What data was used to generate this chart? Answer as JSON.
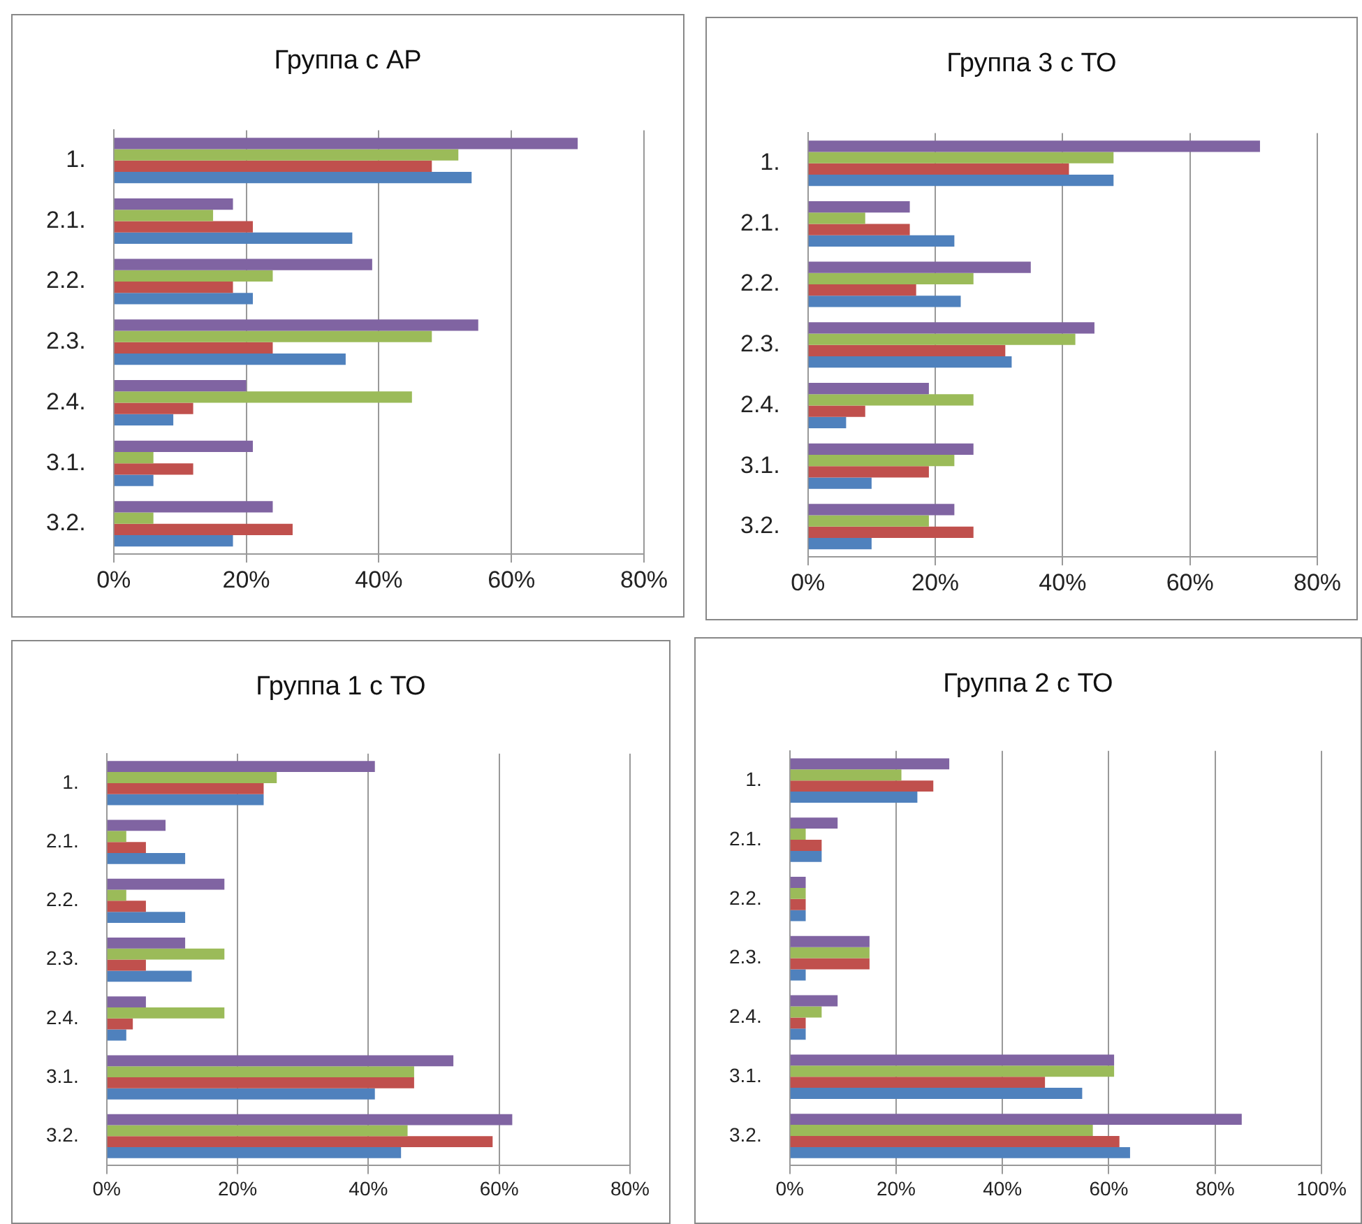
{
  "chart_data": [
    {
      "type": "bar",
      "orientation": "horizontal",
      "title": "Группа с АР",
      "categories": [
        "1.",
        "2.1.",
        "2.2.",
        "2.3.",
        "2.4.",
        "3.1.",
        "3.2."
      ],
      "xlim": [
        0,
        80
      ],
      "xticks": [
        {
          "value": 0,
          "label": "0%"
        },
        {
          "value": 20,
          "label": "20%"
        },
        {
          "value": 40,
          "label": "40%"
        },
        {
          "value": 60,
          "label": "60%"
        },
        {
          "value": 80,
          "label": "80%"
        }
      ],
      "grid": "x",
      "series": [
        {
          "color": "#8064a2",
          "values": [
            70,
            18,
            39,
            55,
            20,
            21,
            24
          ]
        },
        {
          "color": "#9bbb59",
          "values": [
            52,
            15,
            24,
            48,
            45,
            6,
            6
          ]
        },
        {
          "color": "#c0504d",
          "values": [
            48,
            21,
            18,
            24,
            12,
            12,
            27
          ]
        },
        {
          "color": "#4f81bd",
          "values": [
            54,
            36,
            21,
            35,
            9,
            6,
            18
          ]
        }
      ]
    },
    {
      "type": "bar",
      "orientation": "horizontal",
      "title": "Группа 3 с ТО",
      "categories": [
        "1.",
        "2.1.",
        "2.2.",
        "2.3.",
        "2.4.",
        "3.1.",
        "3.2."
      ],
      "xlim": [
        0,
        80
      ],
      "xticks": [
        {
          "value": 0,
          "label": "0%"
        },
        {
          "value": 20,
          "label": "20%"
        },
        {
          "value": 40,
          "label": "40%"
        },
        {
          "value": 60,
          "label": "60%"
        },
        {
          "value": 80,
          "label": "80%"
        }
      ],
      "grid": "x",
      "series": [
        {
          "color": "#8064a2",
          "values": [
            71,
            16,
            35,
            45,
            19,
            26,
            23
          ]
        },
        {
          "color": "#9bbb59",
          "values": [
            48,
            9,
            26,
            42,
            26,
            23,
            19
          ]
        },
        {
          "color": "#c0504d",
          "values": [
            41,
            16,
            17,
            31,
            9,
            19,
            26
          ]
        },
        {
          "color": "#4f81bd",
          "values": [
            48,
            23,
            24,
            32,
            6,
            10,
            10
          ]
        }
      ]
    },
    {
      "type": "bar",
      "orientation": "horizontal",
      "title": "Группа 1 с ТО",
      "categories": [
        "1.",
        "2.1.",
        "2.2.",
        "2.3.",
        "2.4.",
        "3.1.",
        "3.2."
      ],
      "xlim": [
        0,
        80
      ],
      "xticks": [
        {
          "value": 0,
          "label": "0%"
        },
        {
          "value": 20,
          "label": "20%"
        },
        {
          "value": 40,
          "label": "40%"
        },
        {
          "value": 60,
          "label": "60%"
        },
        {
          "value": 80,
          "label": "80%"
        }
      ],
      "grid": "x",
      "series": [
        {
          "color": "#8064a2",
          "values": [
            41,
            9,
            18,
            12,
            6,
            53,
            62
          ]
        },
        {
          "color": "#9bbb59",
          "values": [
            26,
            3,
            3,
            18,
            18,
            47,
            46
          ]
        },
        {
          "color": "#c0504d",
          "values": [
            24,
            6,
            6,
            6,
            4,
            47,
            59
          ]
        },
        {
          "color": "#4f81bd",
          "values": [
            24,
            12,
            12,
            13,
            3,
            41,
            45
          ]
        }
      ]
    },
    {
      "type": "bar",
      "orientation": "horizontal",
      "title": "Группа 2 с ТО",
      "categories": [
        "1.",
        "2.1.",
        "2.2.",
        "2.3.",
        "2.4.",
        "3.1.",
        "3.2."
      ],
      "xlim": [
        0,
        100
      ],
      "xticks": [
        {
          "value": 0,
          "label": "0%"
        },
        {
          "value": 20,
          "label": "20%"
        },
        {
          "value": 40,
          "label": "40%"
        },
        {
          "value": 60,
          "label": "60%"
        },
        {
          "value": 80,
          "label": "80%"
        },
        {
          "value": 100,
          "label": "100%"
        }
      ],
      "grid": "x",
      "series": [
        {
          "color": "#8064a2",
          "values": [
            30,
            9,
            3,
            15,
            9,
            61,
            85
          ]
        },
        {
          "color": "#9bbb59",
          "values": [
            21,
            3,
            3,
            15,
            6,
            61,
            57
          ]
        },
        {
          "color": "#c0504d",
          "values": [
            27,
            6,
            3,
            15,
            3,
            48,
            62
          ]
        },
        {
          "color": "#4f81bd",
          "values": [
            24,
            6,
            3,
            3,
            3,
            55,
            64
          ]
        }
      ]
    }
  ]
}
